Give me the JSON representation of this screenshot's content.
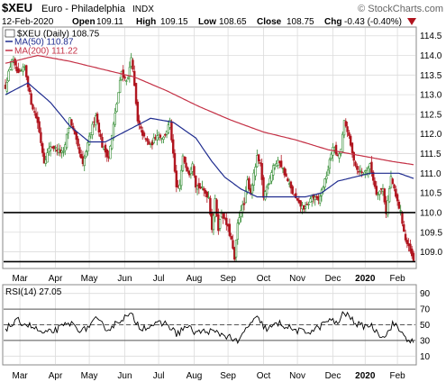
{
  "header": {
    "symbol": "$XEU",
    "name": "Euro - Philadelphia",
    "exchange": "INDX",
    "watermark": "© StockCharts.com",
    "date": "12-Feb-2020",
    "open_label": "Open",
    "open": "109.11",
    "high_label": "High",
    "high": "109.15",
    "low_label": "Low",
    "low": "108.65",
    "close_label": "Close",
    "close": "108.75",
    "chg_label": "Chg",
    "chg": "-0.43 (-0.40%)"
  },
  "colors": {
    "up": "#2f8a2f",
    "down": "#b0141e",
    "ma50": "#1f2c8f",
    "ma200": "#c43045",
    "rsi": "#000000",
    "grid": "#dcdcdc",
    "hline": "#000000"
  },
  "chart_data": [
    {
      "type": "candlestick",
      "legend": [
        {
          "label": "$XEU (Daily) 108.75"
        },
        {
          "label": "MA(50) 110.87"
        },
        {
          "label": "MA(200) 111.22"
        }
      ],
      "y_ticks": [
        "109.0",
        "109.5",
        "110.0",
        "110.5",
        "111.0",
        "111.5",
        "112.0",
        "112.5",
        "113.0",
        "113.5",
        "114.0",
        "114.5"
      ],
      "ylim": [
        108.6,
        114.7
      ],
      "x_tick_labels": [
        "Mar",
        "Apr",
        "May",
        "Jun",
        "Jul",
        "Aug",
        "Sep",
        "Oct",
        "Nov",
        "Dec",
        "2020",
        "Feb"
      ],
      "x_tick_trading_day": [
        9,
        31,
        52,
        74,
        95,
        117,
        138,
        160,
        181,
        203,
        223,
        243
      ],
      "n_days": 254,
      "horizontal_lines": [
        110.0,
        108.75
      ],
      "close_anchor_points": [
        [
          0,
          113.2
        ],
        [
          4,
          113.9
        ],
        [
          8,
          113.5
        ],
        [
          12,
          113.7
        ],
        [
          16,
          112.8
        ],
        [
          20,
          112.3
        ],
        [
          24,
          111.3
        ],
        [
          28,
          111.7
        ],
        [
          32,
          111.6
        ],
        [
          36,
          111.5
        ],
        [
          40,
          112.4
        ],
        [
          44,
          111.8
        ],
        [
          48,
          111.2
        ],
        [
          52,
          111.9
        ],
        [
          56,
          112.5
        ],
        [
          60,
          111.7
        ],
        [
          64,
          111.4
        ],
        [
          68,
          112.5
        ],
        [
          72,
          113.6
        ],
        [
          74,
          113.4
        ],
        [
          76,
          113.4
        ],
        [
          78,
          114.0
        ],
        [
          80,
          113.2
        ],
        [
          82,
          112.3
        ],
        [
          86,
          111.9
        ],
        [
          90,
          111.7
        ],
        [
          94,
          112.0
        ],
        [
          98,
          111.9
        ],
        [
          102,
          112.3
        ],
        [
          106,
          110.6
        ],
        [
          108,
          110.7
        ],
        [
          110,
          111.4
        ],
        [
          114,
          111.0
        ],
        [
          116,
          111.3
        ],
        [
          118,
          110.7
        ],
        [
          122,
          110.6
        ],
        [
          126,
          110.4
        ],
        [
          128,
          109.6
        ],
        [
          130,
          110.3
        ],
        [
          132,
          109.6
        ],
        [
          134,
          110.0
        ],
        [
          138,
          109.6
        ],
        [
          140,
          109.3
        ],
        [
          142,
          108.8
        ],
        [
          144,
          109.7
        ],
        [
          146,
          110.1
        ],
        [
          148,
          110.2
        ],
        [
          150,
          110.8
        ],
        [
          152,
          110.5
        ],
        [
          156,
          111.4
        ],
        [
          158,
          111.2
        ],
        [
          160,
          110.4
        ],
        [
          164,
          110.9
        ],
        [
          166,
          111.2
        ],
        [
          170,
          111.3
        ],
        [
          174,
          110.9
        ],
        [
          178,
          110.5
        ],
        [
          182,
          110.2
        ],
        [
          186,
          110.1
        ],
        [
          190,
          110.4
        ],
        [
          194,
          110.3
        ],
        [
          198,
          110.8
        ],
        [
          200,
          111.1
        ],
        [
          203,
          111.7
        ],
        [
          206,
          111.4
        ],
        [
          208,
          111.6
        ],
        [
          210,
          112.3
        ],
        [
          212,
          112.1
        ],
        [
          215,
          111.5
        ],
        [
          218,
          111.1
        ],
        [
          222,
          111.0
        ],
        [
          226,
          111.2
        ],
        [
          230,
          110.5
        ],
        [
          234,
          110.6
        ],
        [
          236,
          110.0
        ],
        [
          239,
          110.9
        ],
        [
          242,
          110.4
        ],
        [
          245,
          110.0
        ],
        [
          248,
          109.3
        ],
        [
          251,
          109.0
        ],
        [
          253,
          108.75
        ]
      ],
      "ma50_points": [
        [
          0,
          113.0
        ],
        [
          14,
          113.3
        ],
        [
          28,
          112.8
        ],
        [
          40,
          112.2
        ],
        [
          52,
          111.8
        ],
        [
          62,
          111.8
        ],
        [
          76,
          112.1
        ],
        [
          90,
          112.4
        ],
        [
          104,
          112.3
        ],
        [
          118,
          111.9
        ],
        [
          128,
          111.3
        ],
        [
          136,
          110.9
        ],
        [
          146,
          110.6
        ],
        [
          156,
          110.4
        ],
        [
          164,
          110.4
        ],
        [
          176,
          110.4
        ],
        [
          186,
          110.4
        ],
        [
          196,
          110.5
        ],
        [
          206,
          110.8
        ],
        [
          216,
          110.9
        ],
        [
          226,
          111.0
        ],
        [
          236,
          111.0
        ],
        [
          244,
          111.0
        ],
        [
          253,
          110.87
        ]
      ],
      "ma200_points": [
        [
          0,
          113.8
        ],
        [
          20,
          114.0
        ],
        [
          40,
          113.85
        ],
        [
          60,
          113.65
        ],
        [
          80,
          113.45
        ],
        [
          100,
          113.1
        ],
        [
          120,
          112.7
        ],
        [
          140,
          112.35
        ],
        [
          160,
          112.05
        ],
        [
          180,
          111.85
        ],
        [
          200,
          111.6
        ],
        [
          220,
          111.45
        ],
        [
          240,
          111.3
        ],
        [
          253,
          111.22
        ]
      ]
    },
    {
      "type": "line",
      "legend": [
        {
          "label": "RSI(14) 27.05"
        }
      ],
      "y_ticks": [
        "10",
        "30",
        "50",
        "70",
        "90"
      ],
      "ylim": [
        0,
        100
      ],
      "reference_lines": [
        70,
        50,
        30
      ],
      "x_tick_labels": [
        "Mar",
        "Apr",
        "May",
        "Jun",
        "Jul",
        "Aug",
        "Sep",
        "Oct",
        "Nov",
        "Dec",
        "2020",
        "Feb"
      ],
      "x_tick_trading_day": [
        9,
        31,
        52,
        74,
        95,
        117,
        138,
        160,
        181,
        203,
        223,
        243
      ],
      "n_days": 254,
      "anchor_points": [
        [
          0,
          45
        ],
        [
          8,
          55
        ],
        [
          16,
          48
        ],
        [
          24,
          38
        ],
        [
          32,
          44
        ],
        [
          40,
          52
        ],
        [
          48,
          42
        ],
        [
          56,
          56
        ],
        [
          64,
          44
        ],
        [
          72,
          58
        ],
        [
          78,
          62
        ],
        [
          84,
          46
        ],
        [
          92,
          50
        ],
        [
          100,
          52
        ],
        [
          106,
          38
        ],
        [
          112,
          48
        ],
        [
          118,
          40
        ],
        [
          126,
          42
        ],
        [
          134,
          38
        ],
        [
          140,
          34
        ],
        [
          144,
          26
        ],
        [
          150,
          48
        ],
        [
          156,
          58
        ],
        [
          162,
          44
        ],
        [
          170,
          52
        ],
        [
          178,
          44
        ],
        [
          186,
          40
        ],
        [
          194,
          46
        ],
        [
          200,
          56
        ],
        [
          206,
          52
        ],
        [
          210,
          66
        ],
        [
          214,
          58
        ],
        [
          220,
          48
        ],
        [
          226,
          50
        ],
        [
          232,
          38
        ],
        [
          236,
          36
        ],
        [
          240,
          52
        ],
        [
          244,
          44
        ],
        [
          248,
          34
        ],
        [
          253,
          27
        ]
      ]
    }
  ]
}
